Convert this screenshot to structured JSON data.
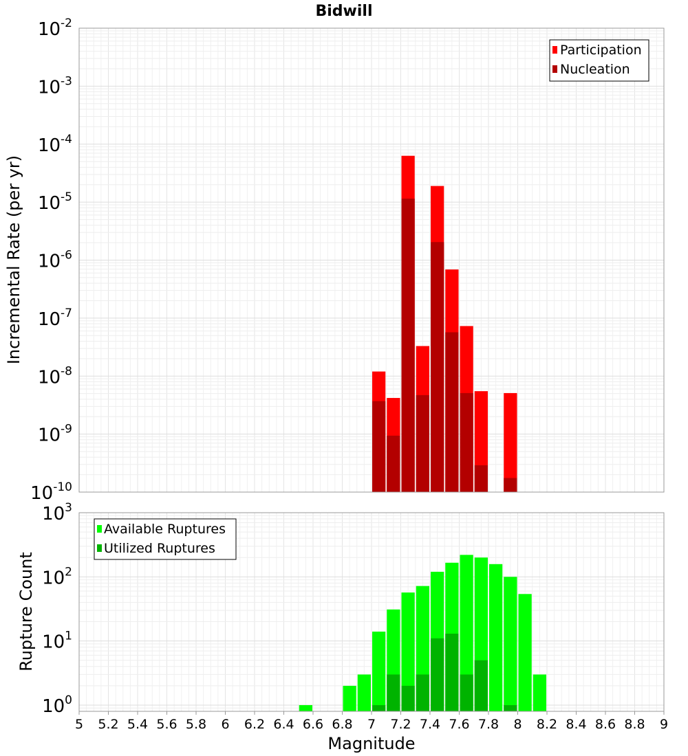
{
  "chart_data": [
    {
      "type": "bar",
      "title": "Bidwill",
      "xlabel": "",
      "ylabel": "Incremental Rate (per yr)",
      "yscale": "log",
      "ylim": [
        1e-10,
        0.01
      ],
      "xlim": [
        5,
        9
      ],
      "grid": true,
      "legend_position": "top-right",
      "bin_width": 0.1,
      "y_ticks": [
        {
          "base": "10",
          "exp": "-10"
        },
        {
          "base": "10",
          "exp": "-9"
        },
        {
          "base": "10",
          "exp": "-8"
        },
        {
          "base": "10",
          "exp": "-7"
        },
        {
          "base": "10",
          "exp": "-6"
        },
        {
          "base": "10",
          "exp": "-5"
        },
        {
          "base": "10",
          "exp": "-4"
        },
        {
          "base": "10",
          "exp": "-3"
        },
        {
          "base": "10",
          "exp": "-2"
        }
      ],
      "series": [
        {
          "name": "Participation",
          "color": "#ff0000",
          "points": [
            {
              "x": 7.05,
              "y": 1.2e-08
            },
            {
              "x": 7.15,
              "y": 4.2e-09
            },
            {
              "x": 7.25,
              "y": 6.3e-05
            },
            {
              "x": 7.35,
              "y": 3.3e-08
            },
            {
              "x": 7.45,
              "y": 1.9e-05
            },
            {
              "x": 7.55,
              "y": 6.9e-07
            },
            {
              "x": 7.65,
              "y": 7.3e-08
            },
            {
              "x": 7.75,
              "y": 5.5e-09
            },
            {
              "x": 7.95,
              "y": 5.1e-09
            }
          ]
        },
        {
          "name": "Nucleation",
          "color": "#b30000",
          "points": [
            {
              "x": 7.05,
              "y": 3.7e-09
            },
            {
              "x": 7.15,
              "y": 9.4e-10
            },
            {
              "x": 7.25,
              "y": 1.15e-05
            },
            {
              "x": 7.35,
              "y": 4.7e-09
            },
            {
              "x": 7.45,
              "y": 2.05e-06
            },
            {
              "x": 7.55,
              "y": 5.7e-08
            },
            {
              "x": 7.65,
              "y": 5.1e-09
            },
            {
              "x": 7.75,
              "y": 2.9e-10
            },
            {
              "x": 7.95,
              "y": 1.75e-10
            }
          ]
        }
      ]
    },
    {
      "type": "bar",
      "title": "",
      "xlabel": "Magnitude",
      "ylabel": "Rupture Count",
      "yscale": "log",
      "ylim": [
        0.8,
        1000
      ],
      "xlim": [
        5,
        9
      ],
      "grid": true,
      "legend_position": "top-left",
      "bin_width": 0.1,
      "x_ticks": [
        "5",
        "5.2",
        "5.4",
        "5.6",
        "5.8",
        "6",
        "6.2",
        "6.4",
        "6.6",
        "6.8",
        "7",
        "7.2",
        "7.4",
        "7.6",
        "7.8",
        "8",
        "8.2",
        "8.4",
        "8.6",
        "8.8",
        "9"
      ],
      "y_ticks": [
        {
          "base": "10",
          "exp": "0"
        },
        {
          "base": "10",
          "exp": "1"
        },
        {
          "base": "10",
          "exp": "2"
        },
        {
          "base": "10",
          "exp": "3"
        }
      ],
      "series": [
        {
          "name": "Available Ruptures",
          "color": "#00ff00",
          "points": [
            {
              "x": 6.55,
              "y": 1
            },
            {
              "x": 6.85,
              "y": 2
            },
            {
              "x": 6.95,
              "y": 3
            },
            {
              "x": 7.05,
              "y": 14
            },
            {
              "x": 7.15,
              "y": 31
            },
            {
              "x": 7.25,
              "y": 57
            },
            {
              "x": 7.35,
              "y": 72
            },
            {
              "x": 7.45,
              "y": 120
            },
            {
              "x": 7.55,
              "y": 166
            },
            {
              "x": 7.65,
              "y": 220
            },
            {
              "x": 7.75,
              "y": 200
            },
            {
              "x": 7.85,
              "y": 158
            },
            {
              "x": 7.95,
              "y": 100
            },
            {
              "x": 8.05,
              "y": 54
            },
            {
              "x": 8.15,
              "y": 3
            }
          ]
        },
        {
          "name": "Utilized Ruptures",
          "color": "#00b300",
          "points": [
            {
              "x": 7.05,
              "y": 1
            },
            {
              "x": 7.15,
              "y": 3
            },
            {
              "x": 7.25,
              "y": 2
            },
            {
              "x": 7.35,
              "y": 3
            },
            {
              "x": 7.45,
              "y": 11
            },
            {
              "x": 7.55,
              "y": 13
            },
            {
              "x": 7.65,
              "y": 3
            },
            {
              "x": 7.75,
              "y": 5
            },
            {
              "x": 7.95,
              "y": 1
            }
          ]
        }
      ]
    }
  ]
}
